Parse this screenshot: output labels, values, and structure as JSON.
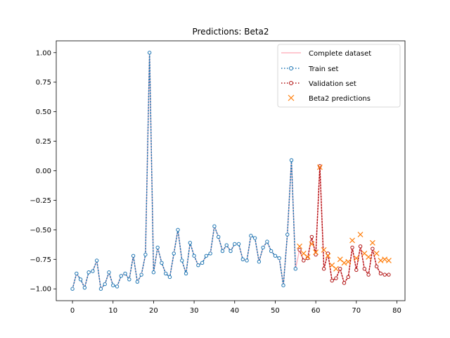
{
  "chart_data": {
    "type": "line",
    "title": "Predictions: Beta2",
    "xlabel": "",
    "ylabel": "",
    "xlim": [
      -4,
      82
    ],
    "ylim": [
      -1.1,
      1.1
    ],
    "x_ticks": [
      0,
      10,
      20,
      30,
      40,
      50,
      60,
      70,
      80
    ],
    "x_tick_labels": [
      "0",
      "10",
      "20",
      "30",
      "40",
      "50",
      "60",
      "70",
      "80"
    ],
    "y_ticks": [
      1.0,
      0.75,
      0.5,
      0.25,
      0.0,
      -0.25,
      -0.5,
      -0.75,
      -1.0
    ],
    "y_tick_labels": [
      "1.00",
      "0.75",
      "0.50",
      "0.25",
      "0.00",
      "−0.25",
      "−0.50",
      "−0.75",
      "−1.00"
    ],
    "legend_position": "top-right",
    "series": [
      {
        "name": "Complete dataset",
        "style": "solid",
        "color": "#ffb6c1",
        "x": [
          0,
          1,
          2,
          3,
          4,
          5,
          6,
          7,
          8,
          9,
          10,
          11,
          12,
          13,
          14,
          15,
          16,
          17,
          18,
          19,
          20,
          21,
          22,
          23,
          24,
          25,
          26,
          27,
          28,
          29,
          30,
          31,
          32,
          33,
          34,
          35,
          36,
          37,
          38,
          39,
          40,
          41,
          42,
          43,
          44,
          45,
          46,
          47,
          48,
          49,
          50,
          51,
          52,
          53,
          54,
          55,
          56,
          57,
          58,
          59,
          60,
          61,
          62,
          63,
          64,
          65,
          66,
          67,
          68,
          69,
          70,
          71,
          72,
          73,
          74,
          75,
          76,
          77,
          78
        ],
        "values": [
          -1.0,
          -0.87,
          -0.92,
          -0.99,
          -0.86,
          -0.85,
          -0.76,
          -1.0,
          -0.96,
          -0.86,
          -0.97,
          -0.98,
          -0.89,
          -0.87,
          -0.92,
          -0.72,
          -0.94,
          -0.88,
          -0.71,
          1.0,
          -0.86,
          -0.65,
          -0.78,
          -0.87,
          -0.9,
          -0.7,
          -0.5,
          -0.76,
          -0.87,
          -0.61,
          -0.72,
          -0.8,
          -0.78,
          -0.72,
          -0.7,
          -0.47,
          -0.56,
          -0.68,
          -0.63,
          -0.68,
          -0.62,
          -0.62,
          -0.75,
          -0.76,
          -0.55,
          -0.57,
          -0.77,
          -0.65,
          -0.6,
          -0.68,
          -0.72,
          -0.74,
          -0.97,
          -0.54,
          0.09,
          -0.83,
          -0.67,
          -0.76,
          -0.74,
          -0.56,
          -0.71,
          0.04,
          -0.83,
          -0.7,
          -0.93,
          -0.91,
          -0.83,
          -0.95,
          -0.9,
          -0.65,
          -0.84,
          -0.64,
          -0.83,
          -0.88,
          -0.66,
          -0.81,
          -0.87,
          -0.88,
          -0.88
        ]
      },
      {
        "name": "Train set",
        "style": "dotted",
        "color": "#1f77b4",
        "x": [
          0,
          1,
          2,
          3,
          4,
          5,
          6,
          7,
          8,
          9,
          10,
          11,
          12,
          13,
          14,
          15,
          16,
          17,
          18,
          19,
          20,
          21,
          22,
          23,
          24,
          25,
          26,
          27,
          28,
          29,
          30,
          31,
          32,
          33,
          34,
          35,
          36,
          37,
          38,
          39,
          40,
          41,
          42,
          43,
          44,
          45,
          46,
          47,
          48,
          49,
          50,
          51,
          52,
          53,
          54,
          55
        ],
        "values": [
          -1.0,
          -0.87,
          -0.92,
          -0.99,
          -0.86,
          -0.85,
          -0.76,
          -1.0,
          -0.96,
          -0.86,
          -0.97,
          -0.98,
          -0.89,
          -0.87,
          -0.92,
          -0.72,
          -0.94,
          -0.88,
          -0.71,
          1.0,
          -0.86,
          -0.65,
          -0.78,
          -0.87,
          -0.9,
          -0.7,
          -0.5,
          -0.76,
          -0.87,
          -0.61,
          -0.72,
          -0.8,
          -0.78,
          -0.72,
          -0.7,
          -0.47,
          -0.56,
          -0.68,
          -0.63,
          -0.68,
          -0.62,
          -0.62,
          -0.75,
          -0.76,
          -0.55,
          -0.57,
          -0.77,
          -0.65,
          -0.6,
          -0.68,
          -0.72,
          -0.74,
          -0.97,
          -0.54,
          0.09,
          -0.83
        ]
      },
      {
        "name": "Validation set",
        "style": "dotted",
        "color": "#b01010",
        "x": [
          56,
          57,
          58,
          59,
          60,
          61,
          62,
          63,
          64,
          65,
          66,
          67,
          68,
          69,
          70,
          71,
          72,
          73,
          74,
          75,
          76,
          77,
          78
        ],
        "values": [
          -0.67,
          -0.76,
          -0.74,
          -0.56,
          -0.71,
          0.04,
          -0.83,
          -0.7,
          -0.93,
          -0.91,
          -0.83,
          -0.95,
          -0.9,
          -0.65,
          -0.84,
          -0.64,
          -0.83,
          -0.88,
          -0.66,
          -0.81,
          -0.87,
          -0.88,
          -0.88
        ]
      },
      {
        "name": "Beta2 predictions",
        "style": "x-marker",
        "color": "#ff7f0e",
        "x": [
          56,
          57,
          58,
          59,
          60,
          61,
          62,
          63,
          64,
          65,
          66,
          67,
          68,
          69,
          70,
          71,
          72,
          73,
          74,
          75,
          76,
          77,
          78
        ],
        "values": [
          -0.64,
          -0.7,
          -0.73,
          -0.62,
          -0.69,
          0.03,
          -0.67,
          -0.72,
          -0.8,
          -0.83,
          -0.75,
          -0.78,
          -0.77,
          -0.59,
          -0.74,
          -0.54,
          -0.7,
          -0.73,
          -0.61,
          -0.7,
          -0.76,
          -0.75,
          -0.76
        ]
      }
    ]
  }
}
